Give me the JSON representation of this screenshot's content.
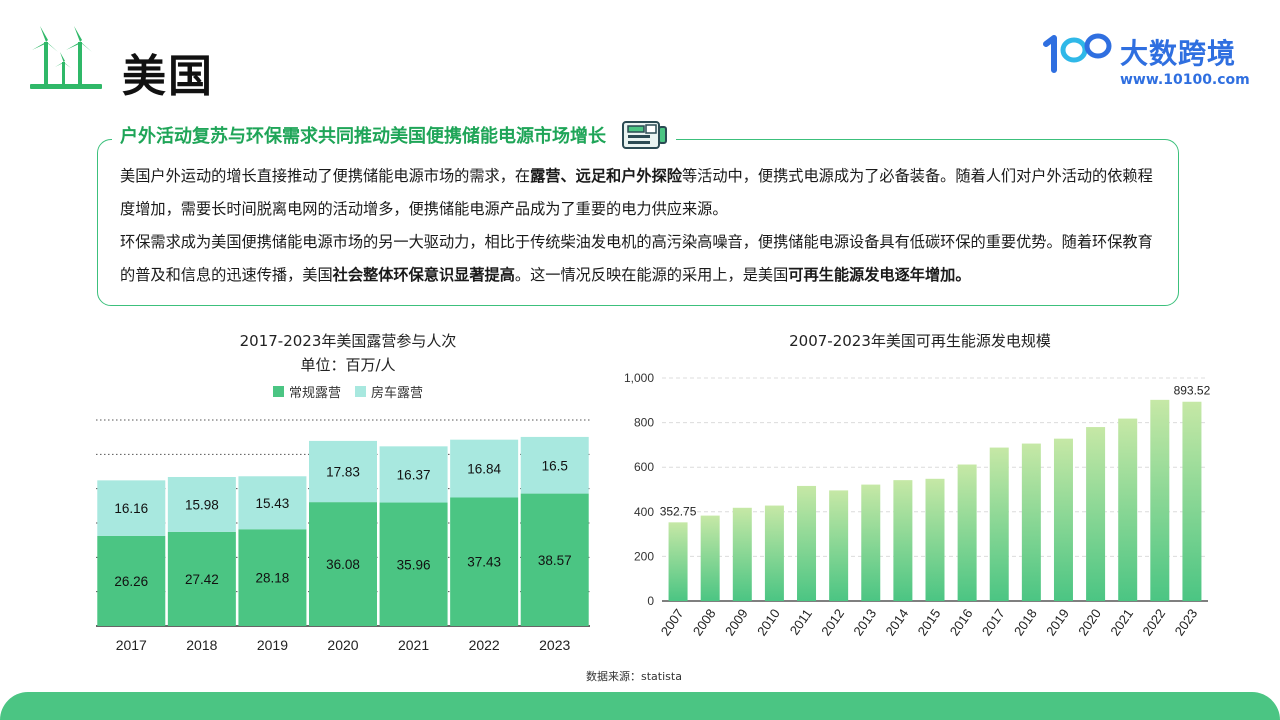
{
  "page": {
    "title": "美国",
    "brand_name": "大数跨境",
    "brand_url": "www.10100.com",
    "source": "数据来源：statista"
  },
  "info": {
    "title": "户外活动复苏与环保需求共同推动美国便携储能电源市场增长",
    "p1_a": "美国户外运动的增长直接推动了便携储能电源市场的需求，在",
    "p1_b": "露营、远足和户外探险",
    "p1_c": "等活动中，便携式电源成为了必备装备。随着人们对户外活动的依赖程度增加，需要长时间脱离电网的活动增多，便携储能电源产品成为了重要的电力供应来源。",
    "p2_a": "环保需求成为美国便携储能电源市场的另一大驱动力，相比于传统柴油发电机的高污染高噪音，便携储能电源设备具有低碳环保的重要优势。随着环保教育的普及和信息的迅速传播，美国",
    "p2_b": "社会整体环保意识显著提高",
    "p2_c": "。这一情况反映在能源的采用上，是美国",
    "p2_d": "可再生能源发电逐年增加。"
  },
  "chart_data": [
    {
      "type": "bar",
      "stacked": true,
      "title": "2017-2023年美国露营参与人次",
      "subtitle": "单位：百万/人",
      "categories": [
        "2017",
        "2018",
        "2019",
        "2020",
        "2021",
        "2022",
        "2023"
      ],
      "series": [
        {
          "name": "常规露营",
          "color": "#4bc583",
          "values": [
            26.26,
            27.42,
            28.18,
            36.08,
            35.96,
            37.43,
            38.57
          ]
        },
        {
          "name": "房车露营",
          "color": "#a8e8df",
          "values": [
            16.16,
            15.98,
            15.43,
            17.83,
            16.37,
            16.84,
            16.5
          ]
        }
      ],
      "legend": "top-center",
      "grid": "dotted-horizontal",
      "ylim": [
        0,
        60
      ]
    },
    {
      "type": "bar",
      "title": "2007-2023年美国可再生能源发电规模",
      "categories": [
        "2007",
        "2008",
        "2009",
        "2010",
        "2011",
        "2012",
        "2013",
        "2014",
        "2015",
        "2016",
        "2017",
        "2018",
        "2019",
        "2020",
        "2021",
        "2022",
        "2023"
      ],
      "values": [
        352.75,
        383,
        418,
        428,
        516,
        496,
        522,
        542,
        548,
        612,
        688,
        706,
        728,
        780,
        818,
        902,
        893.52
      ],
      "value_labels": {
        "2007": "352.75",
        "2023": "893.52"
      },
      "yticks": [
        "0",
        "200",
        "400",
        "600",
        "800",
        "1,000"
      ],
      "ylim": [
        0,
        1000
      ],
      "grid": "dashed-horizontal",
      "colors": {
        "top": "#c6e8a6",
        "bottom": "#4bc583"
      }
    }
  ]
}
